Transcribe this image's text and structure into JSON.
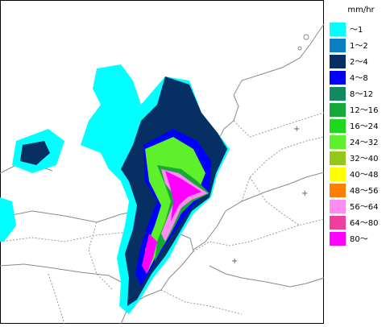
{
  "legend": {
    "unit": "mm/hr",
    "items": [
      {
        "label": "～1",
        "color": "#00ffff"
      },
      {
        "label": "1～2",
        "color": "#0a7fc4"
      },
      {
        "label": "2～4",
        "color": "#062f64"
      },
      {
        "label": "4～8",
        "color": "#0000ff"
      },
      {
        "label": "8～12",
        "color": "#118a62"
      },
      {
        "label": "12～16",
        "color": "#17a83a"
      },
      {
        "label": "16～24",
        "color": "#1ed81e"
      },
      {
        "label": "24～32",
        "color": "#5ef02a"
      },
      {
        "label": "32～40",
        "color": "#93c81a"
      },
      {
        "label": "40～48",
        "color": "#ffff00"
      },
      {
        "label": "48～56",
        "color": "#ff8000"
      },
      {
        "label": "56～64",
        "color": "#ff8cf0"
      },
      {
        "label": "64～80",
        "color": "#ee3ea0"
      },
      {
        "label": "80～",
        "color": "#ff00ff"
      }
    ]
  }
}
